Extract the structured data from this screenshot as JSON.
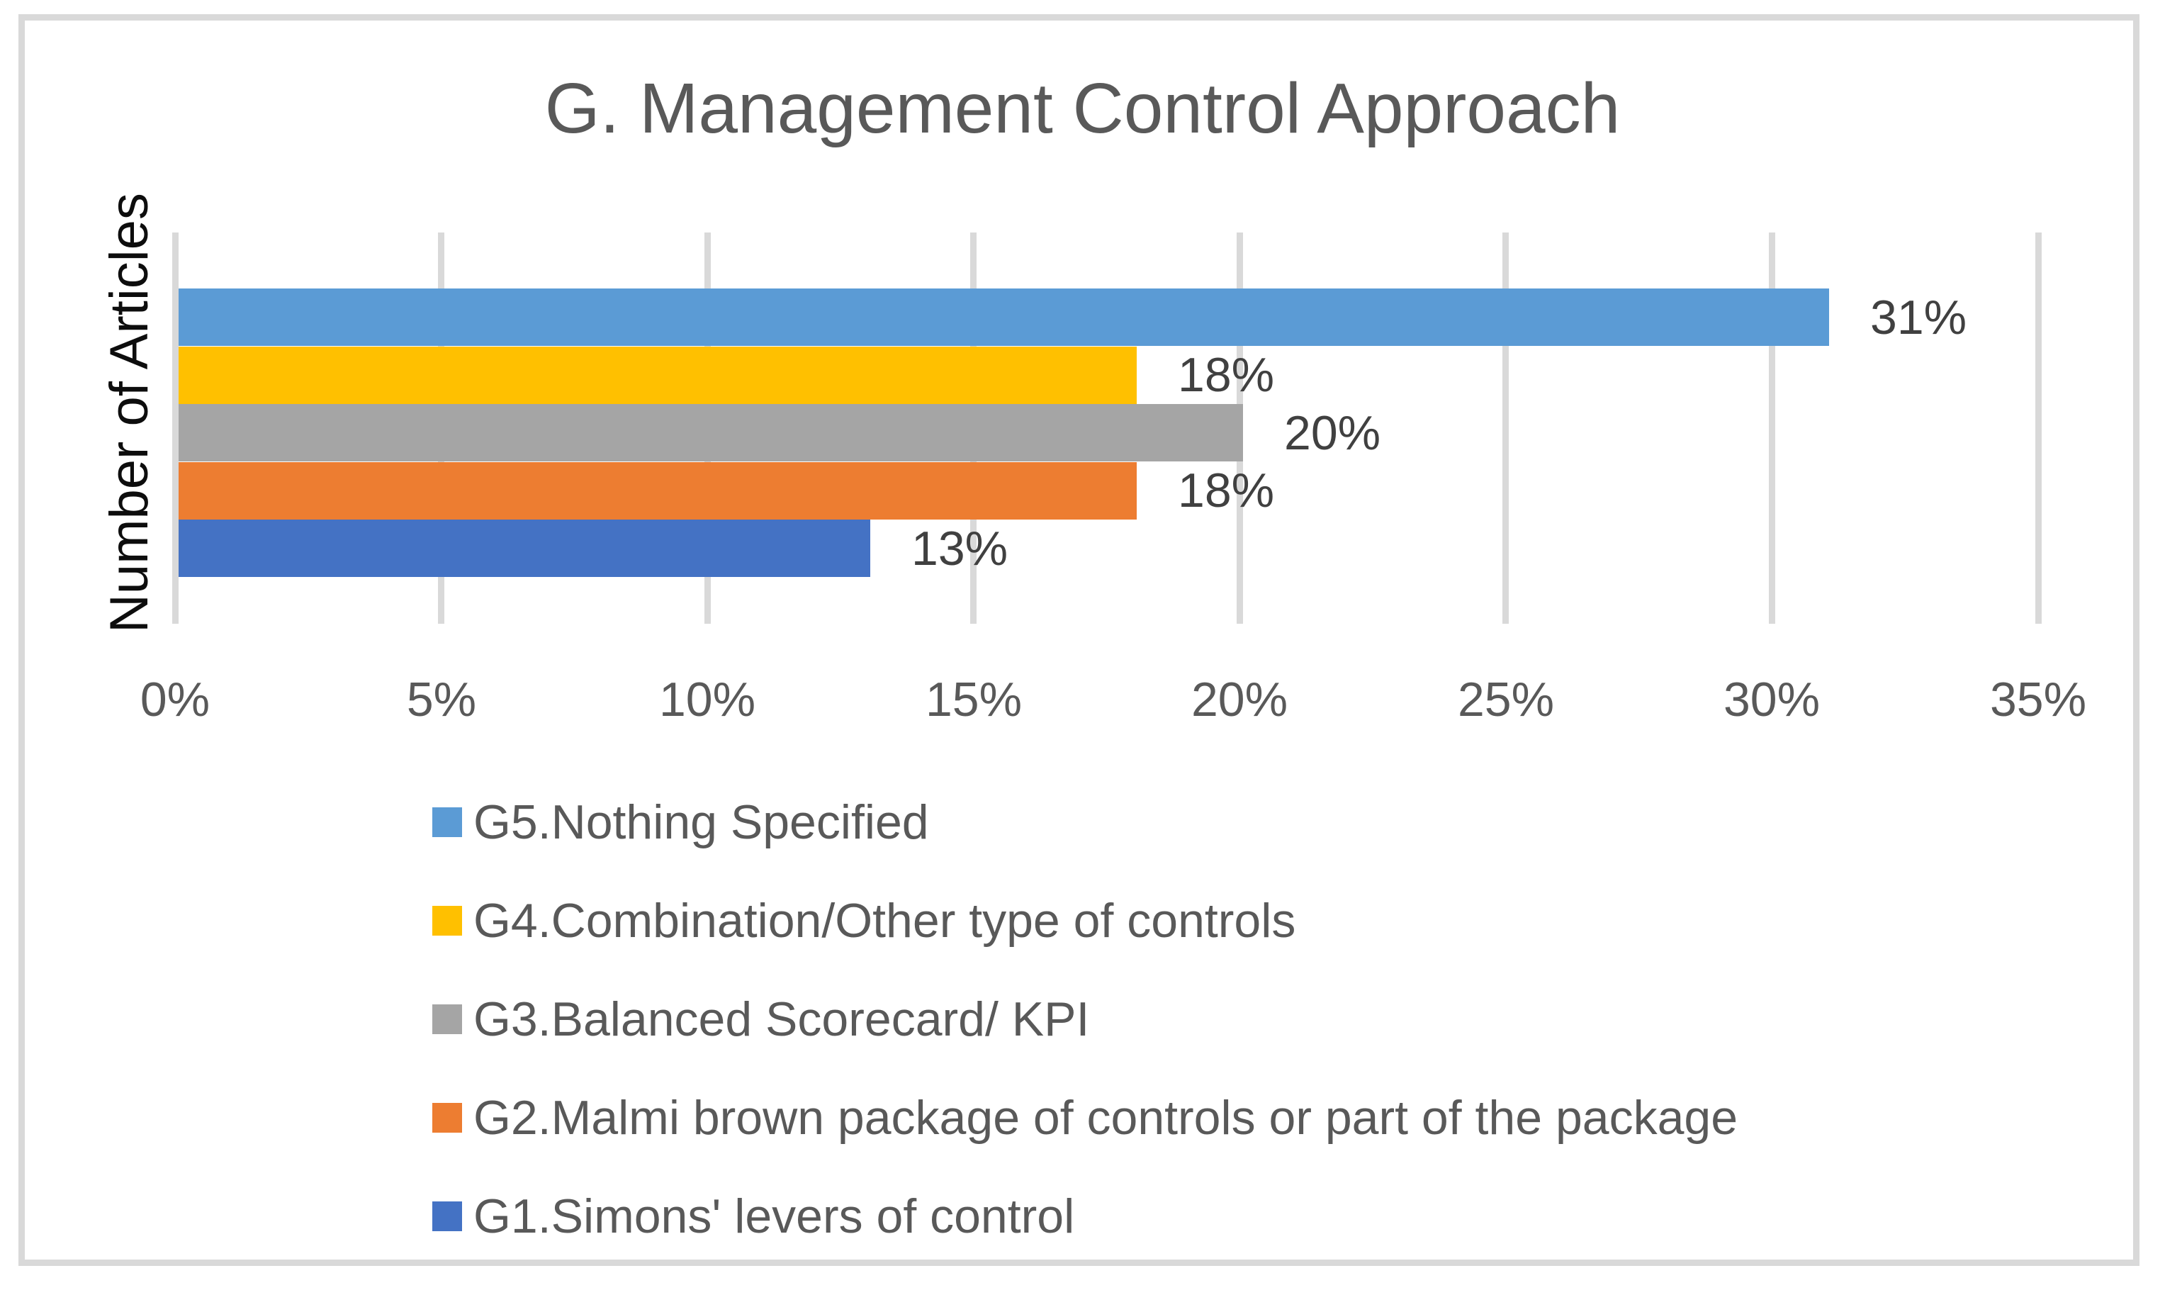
{
  "frame": {
    "border_color": "#D9D9D9",
    "background": "#FFFFFF"
  },
  "chart_data": {
    "type": "bar",
    "orientation": "horizontal",
    "title": "G. Management Control Approach",
    "ylabel": "Number of Articles",
    "xlabel": "",
    "xlim": [
      0,
      35
    ],
    "x_tick_step": 5,
    "x_tick_labels": [
      "0%",
      "5%",
      "10%",
      "15%",
      "20%",
      "25%",
      "30%",
      "35%"
    ],
    "grid": true,
    "legend_position": "bottom-left",
    "series": [
      {
        "name": "G5.Nothing Specified",
        "value": 31,
        "data_label": "31%",
        "color": "#5B9BD5"
      },
      {
        "name": "G4.Combination/Other type of controls",
        "value": 18,
        "data_label": "18%",
        "color": "#FFC000"
      },
      {
        "name": "G3.Balanced Scorecard/ KPI",
        "value": 20,
        "data_label": "20%",
        "color": "#A5A5A5"
      },
      {
        "name": "G2.Malmi brown package of controls or part of the package",
        "value": 18,
        "data_label": "18%",
        "color": "#ED7D31"
      },
      {
        "name": "G1.Simons' levers of control",
        "value": 13,
        "data_label": "13%",
        "color": "#4472C4"
      }
    ],
    "colors": {
      "title": "#595959",
      "axis_labels": "#595959",
      "data_labels": "#404040",
      "y_axis_title": "#0D0D0D",
      "gridline": "#D9D9D9"
    }
  }
}
